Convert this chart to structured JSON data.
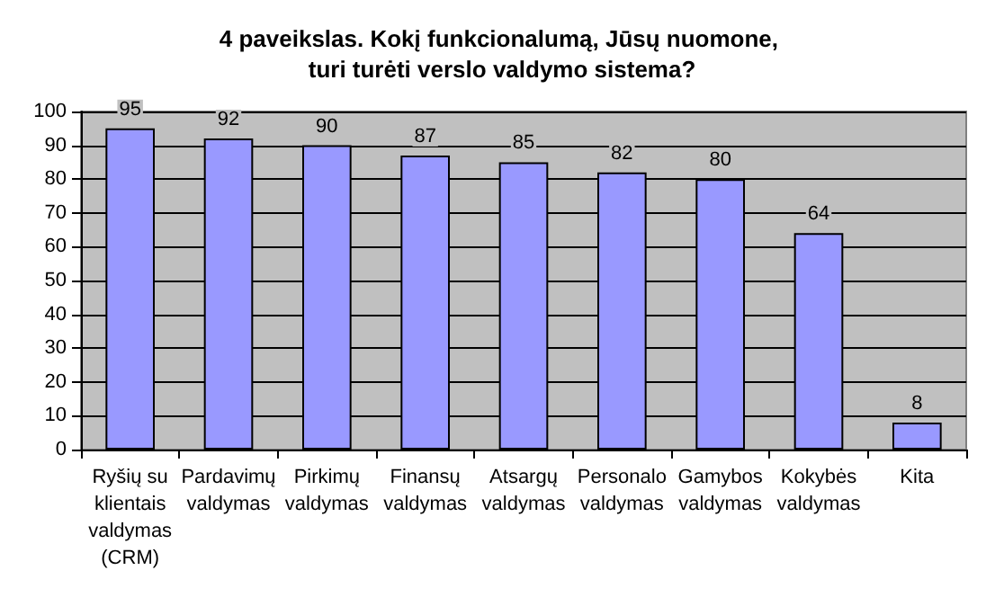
{
  "chart_data": {
    "type": "bar",
    "title": "4 paveikslas. Kokį funkcionalumą, Jūsų nuomone, turi turėti verslo valdymo sistema?",
    "categories": [
      "Ryšių su klientais valdymas (CRM)",
      "Pardavimų valdymas",
      "Pirkimų valdymas",
      "Finansų valdymas",
      "Atsargų valdymas",
      "Personalo valdymas",
      "Gamybos valdymas",
      "Kokybės valdymas",
      "Kita"
    ],
    "values": [
      95,
      92,
      90,
      87,
      85,
      82,
      80,
      64,
      8
    ],
    "color": "#9999ff",
    "data_labels": true,
    "ylim": [
      0,
      100
    ],
    "yticks": [
      0,
      10,
      20,
      30,
      40,
      50,
      60,
      70,
      80,
      90,
      100
    ],
    "grid": "y"
  }
}
